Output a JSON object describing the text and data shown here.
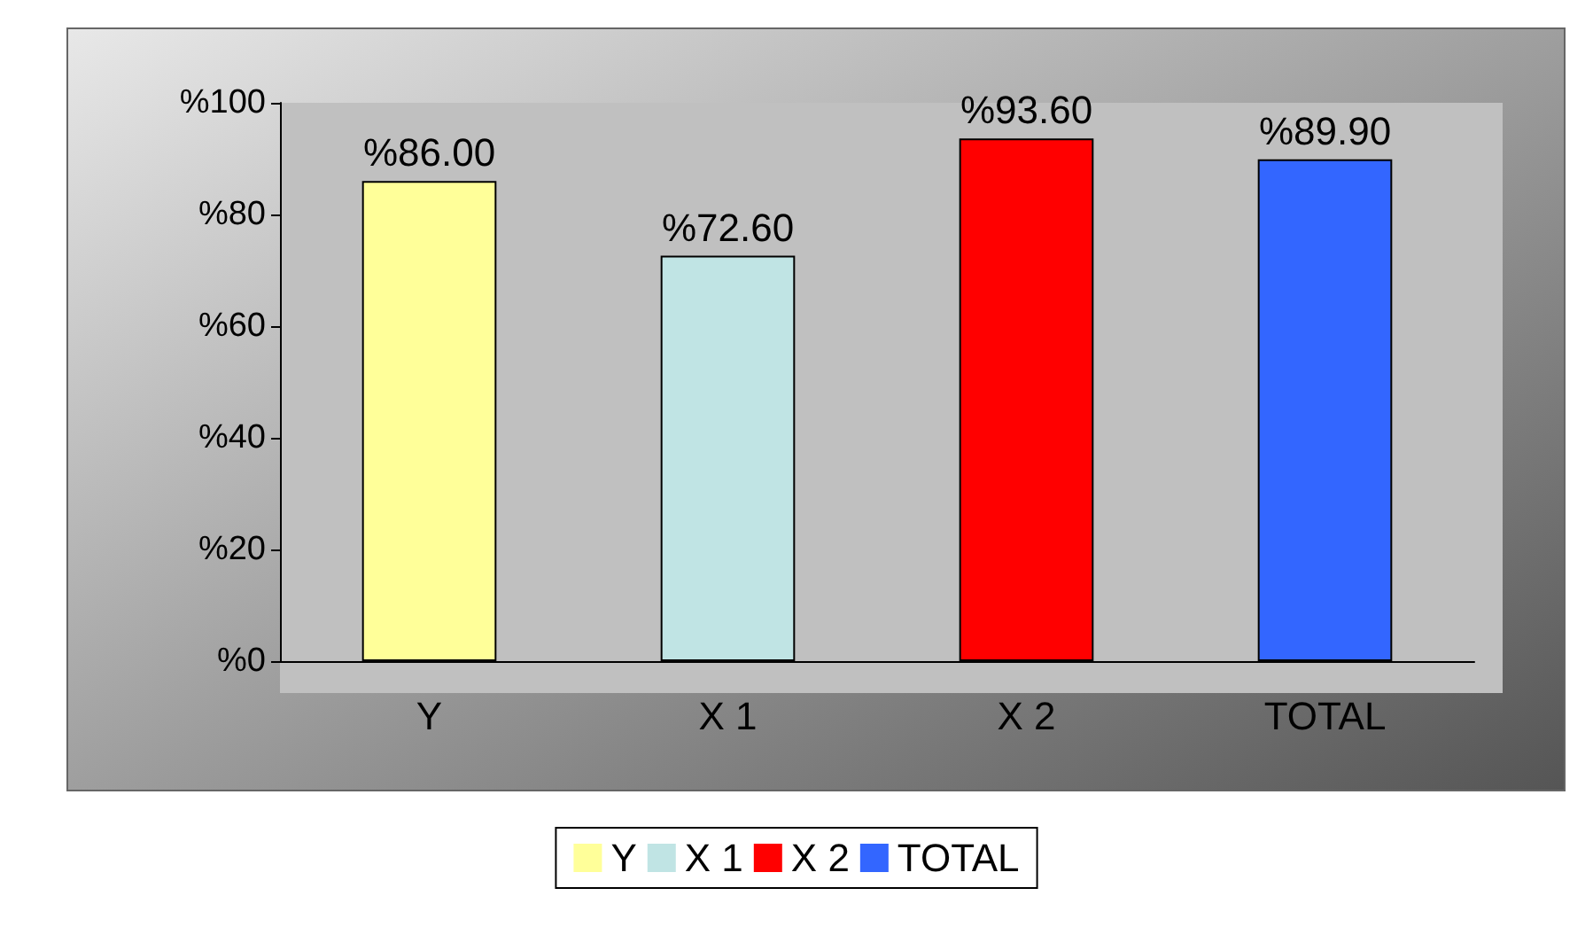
{
  "chart_data": {
    "type": "bar",
    "categories": [
      "Y",
      "X 1",
      "X 2",
      "TOTAL"
    ],
    "series": [
      {
        "name": "Y",
        "color": "#ffff99",
        "values": [
          86.0,
          null,
          null,
          null
        ],
        "value_labels": [
          "%86.00",
          null,
          null,
          null
        ]
      },
      {
        "name": "X 1",
        "color": "#c0e4e4",
        "values": [
          null,
          72.6,
          null,
          null
        ],
        "value_labels": [
          null,
          "%72.60",
          null,
          null
        ]
      },
      {
        "name": "X 2",
        "color": "#ff0000",
        "values": [
          null,
          null,
          93.6,
          null
        ],
        "value_labels": [
          null,
          null,
          "%93.60",
          null
        ]
      },
      {
        "name": "TOTAL",
        "color": "#3366ff",
        "values": [
          null,
          null,
          null,
          89.9
        ],
        "value_labels": [
          null,
          null,
          null,
          "%89.90"
        ]
      }
    ],
    "ylim": [
      0,
      100
    ],
    "yticks": [
      {
        "value": 0,
        "label": "%0"
      },
      {
        "value": 20,
        "label": "%20"
      },
      {
        "value": 40,
        "label": "%40"
      },
      {
        "value": 60,
        "label": "%60"
      },
      {
        "value": 80,
        "label": "%80"
      },
      {
        "value": 100,
        "label": "%100"
      }
    ],
    "grid": false,
    "legend": "bottom"
  }
}
